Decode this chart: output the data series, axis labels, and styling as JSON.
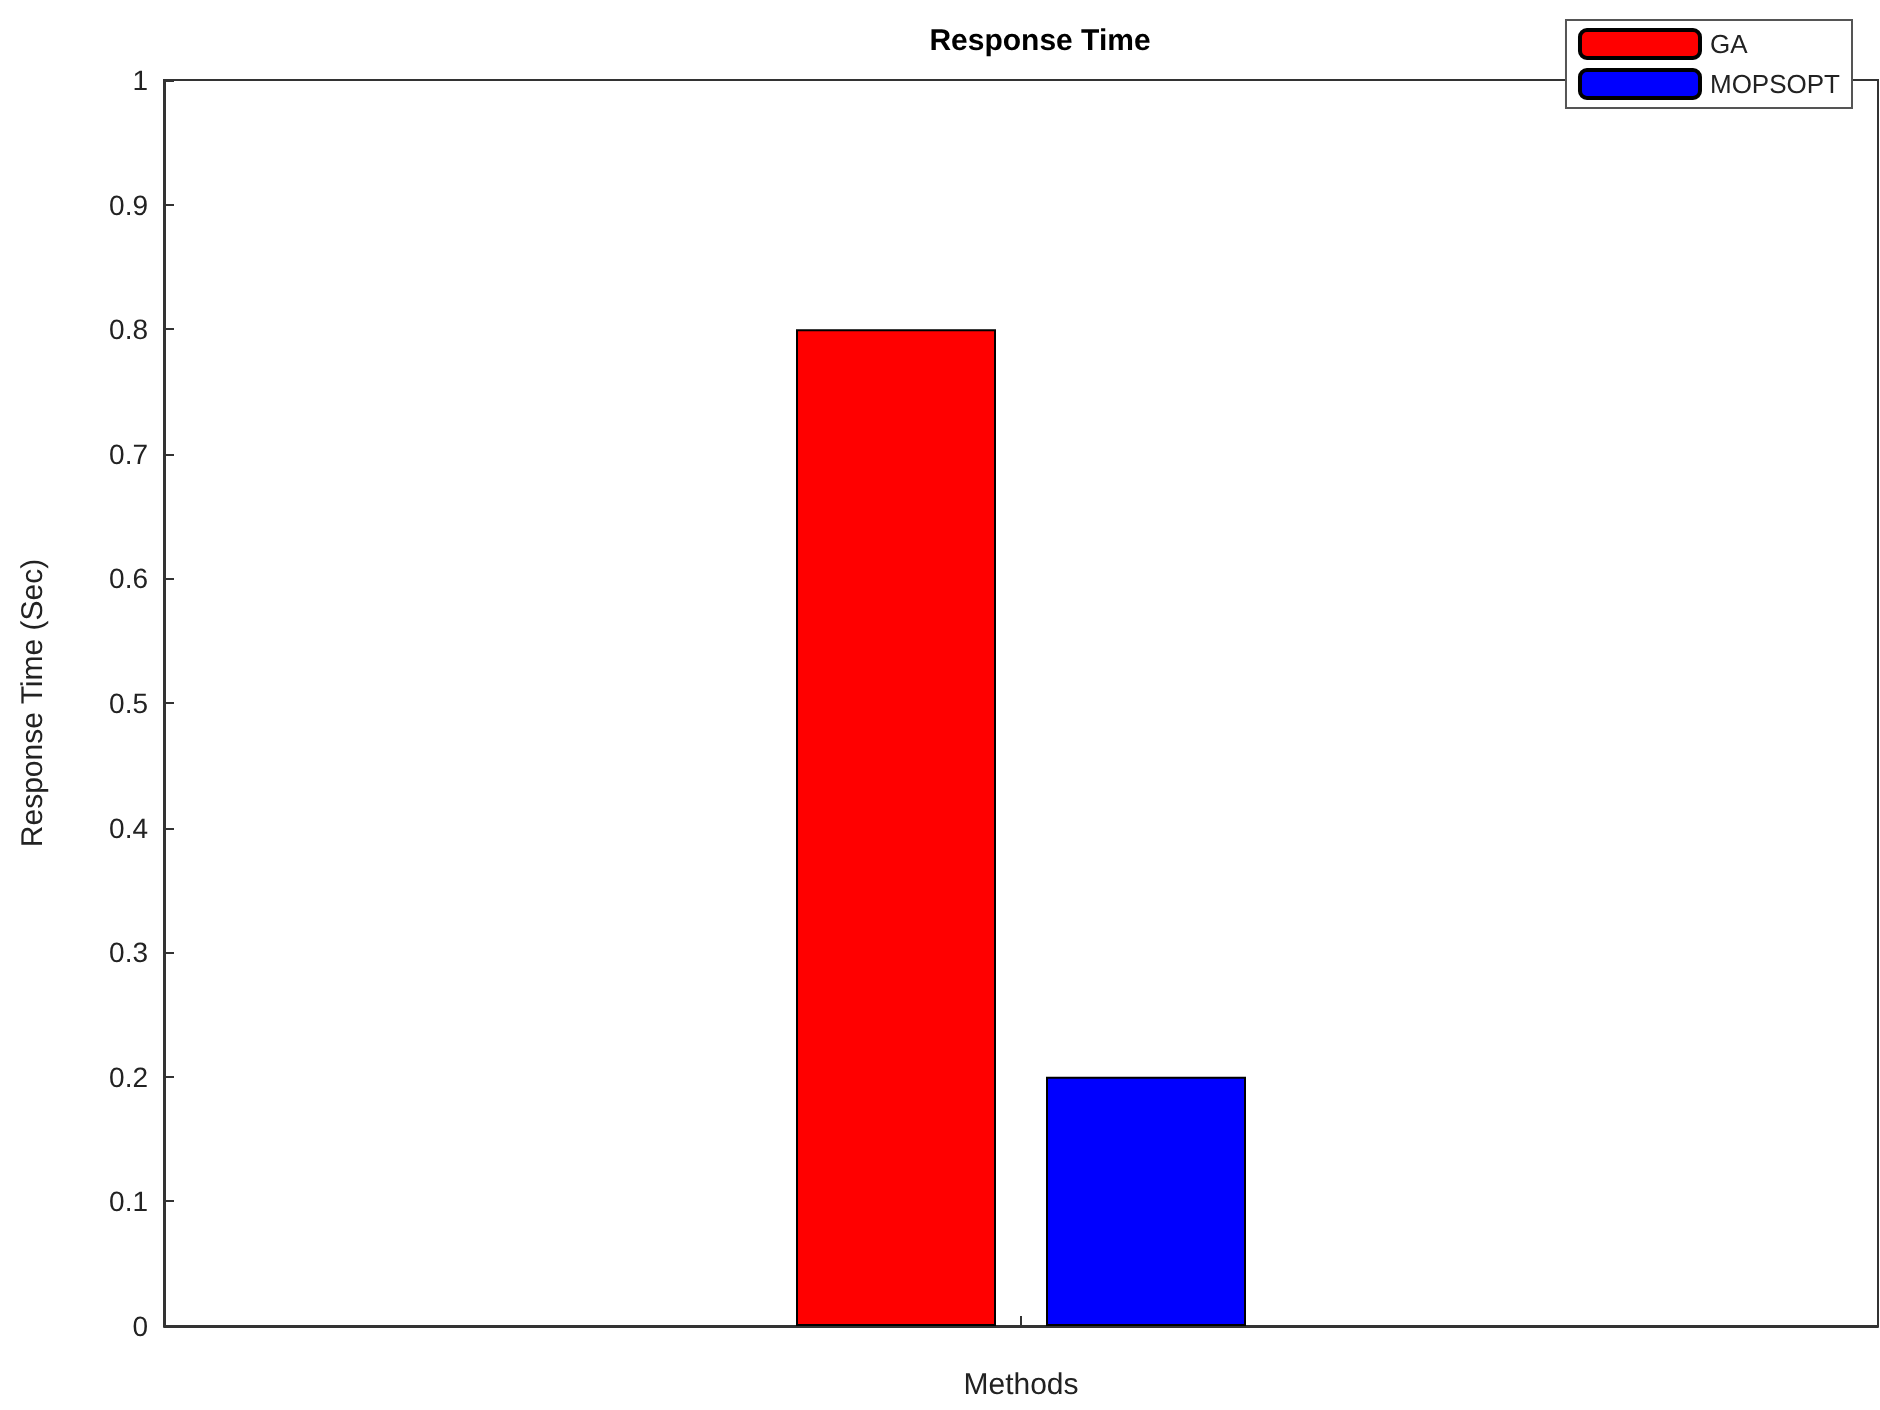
{
  "chart_data": {
    "type": "bar",
    "title": "Response Time",
    "xlabel": "Methods",
    "ylabel": "Response Time (Sec)",
    "categories": [
      null
    ],
    "series": [
      {
        "name": "GA",
        "color": "#ff0000",
        "values": [
          0.8
        ]
      },
      {
        "name": "MOPSOPT",
        "color": "#0000ff",
        "values": [
          0.2
        ]
      }
    ],
    "ylim": [
      0,
      1
    ],
    "yticks": [
      0,
      0.1,
      0.2,
      0.3,
      0.4,
      0.5,
      0.6,
      0.7,
      0.8,
      0.9,
      1
    ],
    "grid": false,
    "legend": "top right"
  }
}
